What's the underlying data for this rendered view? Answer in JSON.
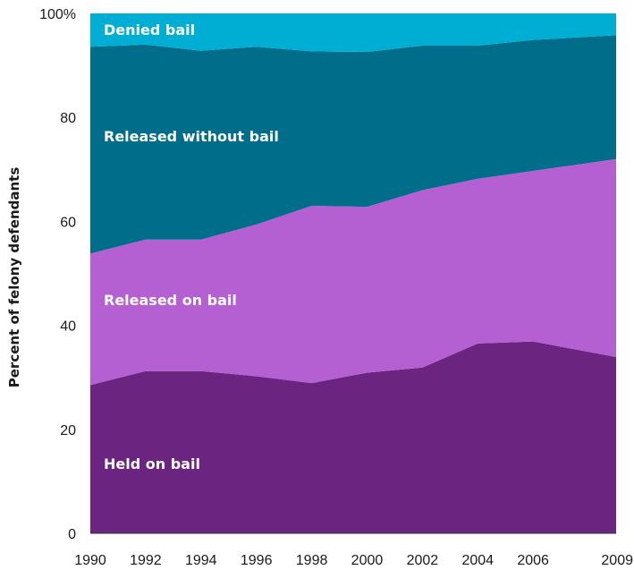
{
  "chart_data": {
    "type": "area",
    "stacked": true,
    "x": [
      1990,
      1992,
      1994,
      1996,
      1998,
      2000,
      2002,
      2004,
      2006,
      2009
    ],
    "xticks": [
      "1990",
      "1992",
      "1994",
      "1996",
      "1998",
      "2000",
      "2002",
      "2004",
      "2006",
      "2009"
    ],
    "yticks": [
      "0",
      "20",
      "40",
      "60",
      "80",
      "100%"
    ],
    "ylabel": "Percent of felony defendants",
    "ylim": [
      0,
      100
    ],
    "series": [
      {
        "name": "Held on bail",
        "color": "#6b2480",
        "values": [
          28.5,
          31.2,
          31.2,
          30.2,
          28.9,
          30.9,
          31.9,
          36.5,
          36.9,
          33.9
        ]
      },
      {
        "name": "Released on bail",
        "color": "#b45fd2",
        "values": [
          25.3,
          25.3,
          25.3,
          29.2,
          34.1,
          31.9,
          34.1,
          31.7,
          32.8,
          38.1
        ]
      },
      {
        "name": "Released without bail",
        "color": "#006e8a",
        "values": [
          39.8,
          37.5,
          36.3,
          34.2,
          29.7,
          29.8,
          27.8,
          25.6,
          25.2,
          23.8
        ]
      },
      {
        "name": "Denied bail",
        "color": "#00aed4",
        "values": [
          6.4,
          6.0,
          7.2,
          6.4,
          7.3,
          7.4,
          6.2,
          6.2,
          5.1,
          4.2
        ]
      }
    ]
  }
}
